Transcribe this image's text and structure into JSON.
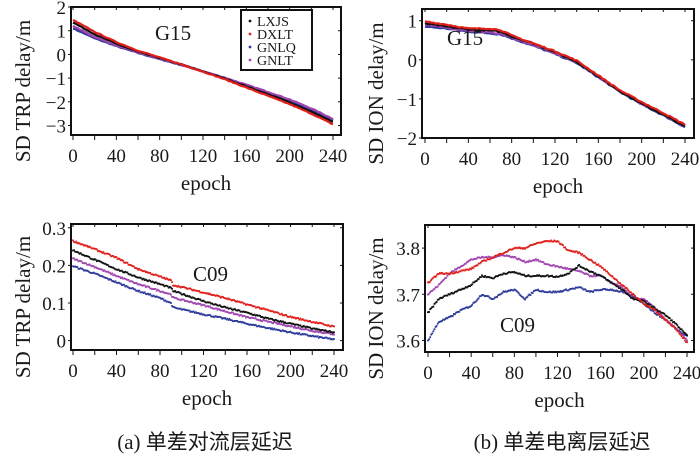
{
  "series_colors": {
    "LXJS": "#111111",
    "DXLT": "#e0201c",
    "GNLQ": "#2d3a9a",
    "GNLT": "#a045b0"
  },
  "legend": {
    "entries": [
      "LXJS",
      "DXLT",
      "GNLQ",
      "GNLT"
    ],
    "placement": "top-right of panel (a) upper chart"
  },
  "captions": {
    "a": "(a) 单差对流层延迟",
    "b": "(b) 单差电离层延迟"
  },
  "chart_data": [
    {
      "id": "trp-g15",
      "type": "line",
      "title": "",
      "annotation": "G15",
      "xlabel": "epoch",
      "ylabel": "SD TRP delay/m",
      "xlim": [
        0,
        240
      ],
      "ylim": [
        -3.4,
        2
      ],
      "xticks": [
        0,
        40,
        80,
        120,
        160,
        200,
        240
      ],
      "xtick_labels": [
        "0",
        "40",
        "80",
        "120",
        "160",
        "200",
        "240"
      ],
      "yticks": [
        2,
        1,
        0,
        -1,
        -2,
        -3
      ],
      "ytick_labels": [
        "2",
        "1",
        "0",
        "−1",
        "−2",
        "−3"
      ],
      "grid": false,
      "legend": true,
      "x": [
        0,
        20,
        40,
        60,
        80,
        100,
        120,
        140,
        160,
        180,
        200,
        220,
        240
      ],
      "series": [
        {
          "name": "LXJS",
          "values": [
            1.35,
            0.85,
            0.45,
            0.12,
            -0.15,
            -0.42,
            -0.72,
            -1.02,
            -1.35,
            -1.68,
            -2.02,
            -2.42,
            -2.85
          ]
        },
        {
          "name": "DXLT",
          "values": [
            1.45,
            0.95,
            0.52,
            0.16,
            -0.13,
            -0.42,
            -0.73,
            -1.05,
            -1.4,
            -1.75,
            -2.1,
            -2.5,
            -2.95
          ]
        },
        {
          "name": "GNLQ",
          "values": [
            1.1,
            0.68,
            0.35,
            0.06,
            -0.2,
            -0.45,
            -0.72,
            -1.0,
            -1.3,
            -1.62,
            -1.95,
            -2.33,
            -2.78
          ]
        },
        {
          "name": "GNLT",
          "values": [
            1.2,
            0.74,
            0.38,
            0.08,
            -0.18,
            -0.44,
            -0.71,
            -0.98,
            -1.28,
            -1.58,
            -1.9,
            -2.28,
            -2.72
          ]
        }
      ]
    },
    {
      "id": "ion-g15",
      "type": "line",
      "title": "",
      "annotation": "G15",
      "xlabel": "epoch",
      "ylabel": "SD ION delay/m",
      "xlim": [
        0,
        240
      ],
      "ylim": [
        -2,
        1.3
      ],
      "xticks": [
        0,
        40,
        80,
        120,
        160,
        200,
        240
      ],
      "xtick_labels": [
        "0",
        "40",
        "80",
        "120",
        "160",
        "200",
        "240"
      ],
      "yticks": [
        1,
        0,
        -1,
        -2
      ],
      "ytick_labels": [
        "1",
        "0",
        "−1",
        "−2"
      ],
      "grid": false,
      "legend": false,
      "x": [
        0,
        20,
        40,
        60,
        70,
        80,
        100,
        120,
        140,
        160,
        180,
        200,
        220,
        240
      ],
      "series": [
        {
          "name": "LXJS",
          "values": [
            0.93,
            0.85,
            0.78,
            0.75,
            0.72,
            0.6,
            0.42,
            0.2,
            -0.05,
            -0.42,
            -0.8,
            -1.12,
            -1.4,
            -1.7
          ]
        },
        {
          "name": "DXLT",
          "values": [
            0.98,
            0.9,
            0.8,
            0.8,
            0.76,
            0.62,
            0.42,
            0.22,
            -0.02,
            -0.4,
            -0.78,
            -1.08,
            -1.36,
            -1.66
          ]
        },
        {
          "name": "GNLQ",
          "values": [
            0.85,
            0.8,
            0.72,
            0.68,
            0.65,
            0.55,
            0.36,
            0.15,
            -0.08,
            -0.45,
            -0.82,
            -1.14,
            -1.42,
            -1.72
          ]
        },
        {
          "name": "GNLT",
          "values": [
            0.9,
            0.82,
            0.75,
            0.7,
            0.67,
            0.57,
            0.38,
            0.17,
            -0.06,
            -0.43,
            -0.8,
            -1.12,
            -1.4,
            -1.7
          ]
        }
      ]
    },
    {
      "id": "trp-c09",
      "type": "scatter",
      "title": "",
      "annotation": "C09",
      "xlabel": "epoch",
      "ylabel": "SD TRP delay/m",
      "xlim": [
        0,
        240
      ],
      "ylim": [
        -0.025,
        0.31
      ],
      "xticks": [
        0,
        40,
        80,
        120,
        160,
        200,
        240
      ],
      "xtick_labels": [
        "0",
        "40",
        "80",
        "120",
        "160",
        "200",
        "240"
      ],
      "yticks": [
        0.3,
        0.2,
        0.1,
        0
      ],
      "ytick_labels": [
        "0.3",
        "0.2",
        "0.1",
        "0"
      ],
      "grid": false,
      "legend": false,
      "x": [
        0,
        20,
        40,
        60,
        80,
        90,
        92,
        120,
        140,
        160,
        180,
        200,
        220,
        240
      ],
      "series": [
        {
          "name": "LXJS",
          "values": [
            0.24,
            0.215,
            0.19,
            0.168,
            0.15,
            0.14,
            0.132,
            0.105,
            0.088,
            0.074,
            0.058,
            0.045,
            0.032,
            0.022
          ]
        },
        {
          "name": "DXLT",
          "values": [
            0.265,
            0.243,
            0.22,
            0.19,
            0.17,
            0.16,
            0.148,
            0.128,
            0.113,
            0.096,
            0.08,
            0.063,
            0.05,
            0.037
          ]
        },
        {
          "name": "GNLQ",
          "values": [
            0.198,
            0.178,
            0.155,
            0.132,
            0.113,
            0.1,
            0.088,
            0.07,
            0.058,
            0.045,
            0.033,
            0.022,
            0.012,
            0.003
          ]
        },
        {
          "name": "GNLT",
          "values": [
            0.218,
            0.196,
            0.172,
            0.15,
            0.132,
            0.123,
            0.114,
            0.094,
            0.078,
            0.062,
            0.05,
            0.038,
            0.026,
            0.017
          ]
        }
      ]
    },
    {
      "id": "ion-c09",
      "type": "scatter",
      "title": "",
      "annotation": "C09",
      "xlabel": "epoch",
      "ylabel": "SD ION delay/m",
      "xlim": [
        0,
        240
      ],
      "ylim": [
        3.575,
        3.85
      ],
      "xticks": [
        0,
        40,
        80,
        120,
        160,
        200,
        240
      ],
      "xtick_labels": [
        "0",
        "40",
        "80",
        "120",
        "160",
        "200",
        "240"
      ],
      "yticks": [
        3.8,
        3.7,
        3.6
      ],
      "ytick_labels": [
        "3.8",
        "3.7",
        "3.6"
      ],
      "grid": false,
      "legend": false,
      "x": [
        0,
        10,
        20,
        30,
        40,
        50,
        60,
        70,
        80,
        90,
        100,
        110,
        120,
        130,
        140,
        150,
        160,
        170,
        180,
        190,
        200,
        210,
        220,
        230,
        240
      ],
      "series": [
        {
          "name": "LXJS",
          "values": [
            3.66,
            3.69,
            3.7,
            3.71,
            3.72,
            3.74,
            3.735,
            3.745,
            3.748,
            3.74,
            3.74,
            3.74,
            3.738,
            3.745,
            3.762,
            3.75,
            3.74,
            3.725,
            3.71,
            3.69,
            3.685,
            3.67,
            3.655,
            3.635,
            3.61
          ]
        },
        {
          "name": "DXLT",
          "values": [
            3.725,
            3.745,
            3.745,
            3.75,
            3.755,
            3.77,
            3.78,
            3.79,
            3.8,
            3.8,
            3.81,
            3.815,
            3.815,
            3.795,
            3.79,
            3.775,
            3.76,
            3.74,
            3.72,
            3.7,
            3.68,
            3.665,
            3.645,
            3.625,
            3.595
          ]
        },
        {
          "name": "GNLQ",
          "values": [
            3.6,
            3.64,
            3.65,
            3.665,
            3.675,
            3.7,
            3.69,
            3.705,
            3.71,
            3.69,
            3.71,
            3.705,
            3.705,
            3.71,
            3.715,
            3.705,
            3.71,
            3.71,
            3.705,
            3.695,
            3.68,
            3.66,
            3.645,
            3.625,
            3.61
          ]
        },
        {
          "name": "GNLT",
          "values": [
            3.7,
            3.72,
            3.745,
            3.76,
            3.775,
            3.78,
            3.78,
            3.785,
            3.78,
            3.77,
            3.775,
            3.765,
            3.76,
            3.755,
            3.75,
            3.74,
            3.74,
            3.725,
            3.715,
            3.69,
            3.69,
            3.67,
            3.645,
            3.625,
            3.6
          ]
        }
      ]
    }
  ]
}
